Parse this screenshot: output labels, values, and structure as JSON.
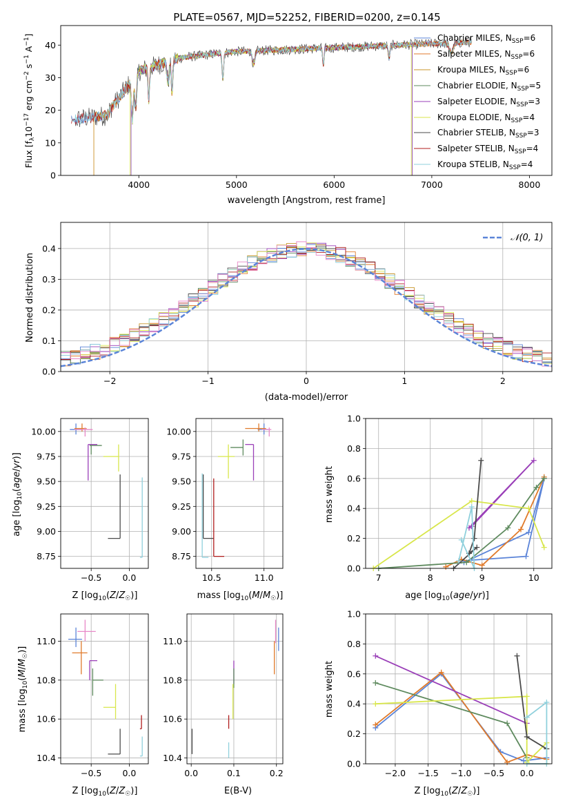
{
  "figure": {
    "title": "PLATE=0567, MJD=52252, FIBERID=0200, z=0.145"
  },
  "colors": {
    "blue": "#5b84d8",
    "orange": "#e07a2a",
    "olive": "#c8952a",
    "green": "#5e8a5e",
    "purple": "#9a3fb8",
    "yellow": "#d8e64a",
    "dark": "#4a4a4a",
    "red": "#b01c1c",
    "cyan": "#8fd0dc",
    "pink": "#e888c8",
    "gray": "#7a7a7a",
    "grid": "#b0b0b0"
  },
  "chart_data": [
    {
      "id": "spectrum",
      "type": "line",
      "xlabel": "wavelength [Angstrom, rest frame]",
      "ylabel": "Flux [f_λ 10^-17 erg cm^-2 s^-1 A^-1]",
      "ylabel_parts": {
        "a": "Flux [f",
        "b": "λ",
        "c": "10",
        "d": "−17",
        "e": " erg cm",
        "f": "−2",
        "g": " s",
        "h": "−1",
        "i": " A",
        "j": "−1",
        "k": "]"
      },
      "xlim": [
        3200,
        8230
      ],
      "ylim": [
        0,
        46
      ],
      "xticks": [
        4000,
        5000,
        6000,
        7000,
        8000
      ],
      "yticks": [
        0,
        10,
        20,
        30,
        40
      ],
      "grid": false,
      "legend_placement": "top-right",
      "data_range": [
        3310,
        7410
      ],
      "legend": [
        {
          "name_main": "Chabrier MILES, N",
          "sub": "SSP",
          "tail": "=6",
          "color": "#5b84d8",
          "x_start": 3310,
          "x_end": 7410
        },
        {
          "name_main": "Salpeter MILES, N",
          "sub": "SSP",
          "tail": "=6",
          "color": "#e07a2a",
          "x_start": 3540,
          "x_end": 7410
        },
        {
          "name_main": "Kroupa MILES, N",
          "sub": "SSP",
          "tail": "=6",
          "color": "#c8952a",
          "x_start": 3540,
          "x_end": 7400
        },
        {
          "name_main": "Chabrier ELODIE, N",
          "sub": "SSP",
          "tail": "=5",
          "color": "#5e8a5e",
          "x_start": 3920,
          "x_end": 6800
        },
        {
          "name_main": "Salpeter ELODIE, N",
          "sub": "SSP",
          "tail": "=3",
          "color": "#9a3fb8",
          "x_start": 3920,
          "x_end": 6800
        },
        {
          "name_main": "Kroupa ELODIE, N",
          "sub": "SSP",
          "tail": "=4",
          "color": "#d8e64a",
          "x_start": 3910,
          "x_end": 6790
        },
        {
          "name_main": "Chabrier STELIB, N",
          "sub": "SSP",
          "tail": "=3",
          "color": "#4a4a4a",
          "x_start": 3310,
          "x_end": 7410
        },
        {
          "name_main": "Salpeter STELIB, N",
          "sub": "SSP",
          "tail": "=4",
          "color": "#b01c1c",
          "x_start": 3310,
          "x_end": 7410
        },
        {
          "name_main": "Kroupa STELIB, N",
          "sub": "SSP",
          "tail": "=4",
          "color": "#8fd0dc",
          "x_start": 3310,
          "x_end": 7410
        }
      ]
    },
    {
      "id": "residuals",
      "type": "line",
      "xlabel": "(data-model)/error",
      "ylabel": "Normed distribution",
      "xlim": [
        -2.5,
        2.5
      ],
      "ylim": [
        0,
        0.485
      ],
      "xticks": [
        -2,
        -1,
        0,
        1,
        2
      ],
      "yticks": [
        0.0,
        0.1,
        0.2,
        0.3,
        0.4
      ],
      "grid": true,
      "legend_placement": "top-right",
      "gaussian_label": "𝒩(0, 1)",
      "gaussian_color": "#5b84d8",
      "n_bins": 50,
      "step_colors": [
        "#5b84d8",
        "#e07a2a",
        "#c8952a",
        "#5e8a5e",
        "#9a3fb8",
        "#d8e64a",
        "#4a4a4a",
        "#b01c1c",
        "#8fd0dc",
        "#e888c8"
      ]
    },
    {
      "id": "age_vs_Z",
      "type": "scatter",
      "xlabel": "Z [log10(Z/Z☉)]",
      "ylabel": "age  [log10(age/yr)]",
      "xlim": [
        -0.9,
        0.25
      ],
      "ylim": [
        8.63,
        10.13
      ],
      "xticks": [
        -0.5,
        0.0
      ],
      "yticks": [
        8.75,
        9.0,
        9.25,
        9.5,
        9.75,
        10.0
      ],
      "grid": true,
      "points": [
        {
          "color": "#5b84d8",
          "x": -0.7,
          "y": 10.02,
          "x_err": [
            0.08,
            0.08
          ],
          "y_err": [
            0.05,
            0.06
          ]
        },
        {
          "color": "#e07a2a",
          "x": -0.62,
          "y": 10.03,
          "x_err": [
            0.1,
            0.06
          ],
          "y_err": [
            0.03,
            0.05
          ]
        },
        {
          "color": "#e888c8",
          "x": -0.58,
          "y": 10.02,
          "x_err": [
            0.14,
            0.1
          ],
          "y_err": [
            0.07,
            0.02
          ]
        },
        {
          "color": "#5e8a5e",
          "x": -0.5,
          "y": 9.86,
          "x_err": [
            0.02,
            0.14
          ],
          "y_err": [
            0.09,
            0.01
          ]
        },
        {
          "color": "#9a3fb8",
          "x": -0.54,
          "y": 9.87,
          "x_err": [
            0.0,
            0.12
          ],
          "y_err": [
            0.36,
            0.0
          ]
        },
        {
          "color": "#d8e64a",
          "x": -0.14,
          "y": 9.75,
          "x_err": [
            0.2,
            0.0
          ],
          "y_err": [
            0.15,
            0.12
          ]
        },
        {
          "color": "#4a4a4a",
          "x": -0.12,
          "y": 8.93,
          "x_err": [
            0.16,
            0.0
          ],
          "y_err": [
            0.0,
            0.64
          ]
        },
        {
          "color": "#b01c1c",
          "x": 0.16,
          "y": 8.75,
          "x_err": [
            0.0,
            0.0
          ],
          "y_err": [
            0.0,
            0.0
          ]
        },
        {
          "color": "#8fd0dc",
          "x": 0.17,
          "y": 8.74,
          "x_err": [
            0.03,
            0.0
          ],
          "y_err": [
            0.0,
            0.8
          ]
        }
      ]
    },
    {
      "id": "age_vs_mass",
      "type": "scatter",
      "xlabel": "mass [log10(M/M☉)]",
      "ylabel": "",
      "xlim": [
        10.35,
        11.18
      ],
      "ylim": [
        8.63,
        10.13
      ],
      "xticks": [
        10.5,
        11.0
      ],
      "yticks": [
        8.75,
        9.0,
        9.25,
        9.5,
        9.75,
        10.0
      ],
      "grid": true,
      "points": [
        {
          "color": "#5b84d8",
          "x": 11.0,
          "y": 10.02,
          "x_err": [
            0.06,
            0.04
          ],
          "y_err": [
            0.05,
            0.06
          ]
        },
        {
          "color": "#e07a2a",
          "x": 10.95,
          "y": 10.03,
          "x_err": [
            0.13,
            0.07
          ],
          "y_err": [
            0.03,
            0.05
          ]
        },
        {
          "color": "#e888c8",
          "x": 11.05,
          "y": 10.02,
          "x_err": [
            0.07,
            0.02
          ],
          "y_err": [
            0.07,
            0.02
          ]
        },
        {
          "color": "#5e8a5e",
          "x": 10.8,
          "y": 9.84,
          "x_err": [
            0.12,
            0.0
          ],
          "y_err": [
            0.08,
            0.08
          ]
        },
        {
          "color": "#9a3fb8",
          "x": 10.9,
          "y": 9.87,
          "x_err": [
            0.08,
            0.0
          ],
          "y_err": [
            0.36,
            0.0
          ]
        },
        {
          "color": "#d8e64a",
          "x": 10.66,
          "y": 9.75,
          "x_err": [
            0.1,
            0.06
          ],
          "y_err": [
            0.22,
            0.12
          ]
        },
        {
          "color": "#4a4a4a",
          "x": 10.42,
          "y": 8.93,
          "x_err": [
            0.0,
            0.1
          ],
          "y_err": [
            0.0,
            0.64
          ]
        },
        {
          "color": "#b01c1c",
          "x": 10.52,
          "y": 8.75,
          "x_err": [
            0.0,
            0.1
          ],
          "y_err": [
            0.0,
            0.78
          ]
        },
        {
          "color": "#8fd0dc",
          "x": 10.41,
          "y": 8.74,
          "x_err": [
            0.0,
            0.06
          ],
          "y_err": [
            0.0,
            0.84
          ]
        }
      ]
    },
    {
      "id": "weight_vs_age",
      "type": "line",
      "xlabel": "age  [log10(age/yr)]",
      "ylabel": "mass weight",
      "xlim": [
        6.75,
        10.35
      ],
      "ylim": [
        0,
        1
      ],
      "xticks": [
        7,
        8,
        9,
        10
      ],
      "yticks": [
        0.0,
        0.2,
        0.4,
        0.6,
        0.8,
        1.0
      ],
      "grid": true,
      "series": [
        {
          "color": "#5b84d8",
          "x": [
            8.6,
            9.85,
            10.2,
            9.9,
            8.65
          ],
          "y": [
            0.05,
            0.08,
            0.6,
            0.24,
            0.04
          ]
        },
        {
          "color": "#e07a2a",
          "x": [
            8.3,
            8.6,
            9.0,
            9.75,
            10.2
          ],
          "y": [
            0.01,
            0.06,
            0.02,
            0.26,
            0.61
          ]
        },
        {
          "color": "#5e8a5e",
          "x": [
            7.0,
            8.7,
            9.5,
            10.05,
            10.2
          ],
          "y": [
            0.0,
            0.04,
            0.27,
            0.54,
            0.6
          ]
        },
        {
          "color": "#9a3fb8",
          "x": [
            8.75,
            10.0,
            8.8
          ],
          "y": [
            0.27,
            0.72,
            0.28
          ]
        },
        {
          "color": "#d8e64a",
          "x": [
            6.9,
            8.8,
            9.9,
            10.2
          ],
          "y": [
            0.0,
            0.45,
            0.4,
            0.14
          ]
        },
        {
          "color": "#4a4a4a",
          "x": [
            8.45,
            8.9,
            8.75,
            8.85,
            8.98
          ],
          "y": [
            0.0,
            0.14,
            0.1,
            0.2,
            0.72
          ]
        },
        {
          "color": "#8fd0dc",
          "x": [
            8.55,
            8.8,
            8.85,
            8.6
          ],
          "y": [
            0.05,
            0.41,
            0.0,
            0.19
          ]
        }
      ]
    },
    {
      "id": "mass_vs_Z",
      "type": "scatter",
      "xlabel": "Z [log10(Z/Z☉)]",
      "ylabel": "mass [log10(M/M☉)]",
      "xlim": [
        -0.9,
        0.25
      ],
      "ylim": [
        10.37,
        11.14
      ],
      "xticks": [
        -0.5,
        0.0
      ],
      "yticks": [
        10.4,
        10.6,
        10.8,
        11.0
      ],
      "grid": true,
      "points": [
        {
          "color": "#5b84d8",
          "x": -0.7,
          "y": 11.01,
          "x_err": [
            0.1,
            0.08
          ],
          "y_err": [
            0.04,
            0.06
          ]
        },
        {
          "color": "#e888c8",
          "x": -0.58,
          "y": 11.05,
          "x_err": [
            0.1,
            0.14
          ],
          "y_err": [
            0.05,
            0.06
          ]
        },
        {
          "color": "#e07a2a",
          "x": -0.63,
          "y": 10.94,
          "x_err": [
            0.12,
            0.08
          ],
          "y_err": [
            0.11,
            0.06
          ]
        },
        {
          "color": "#9a3fb8",
          "x": -0.52,
          "y": 10.9,
          "x_err": [
            0.0,
            0.1
          ],
          "y_err": [
            0.1,
            0.0
          ]
        },
        {
          "color": "#5e8a5e",
          "x": -0.48,
          "y": 10.8,
          "x_err": [
            0.0,
            0.14
          ],
          "y_err": [
            0.08,
            0.06
          ]
        },
        {
          "color": "#d8e64a",
          "x": -0.18,
          "y": 10.66,
          "x_err": [
            0.16,
            0.0
          ],
          "y_err": [
            0.06,
            0.12
          ]
        },
        {
          "color": "#4a4a4a",
          "x": -0.12,
          "y": 10.42,
          "x_err": [
            0.16,
            0.0
          ],
          "y_err": [
            0.0,
            0.13
          ]
        },
        {
          "color": "#b01c1c",
          "x": 0.16,
          "y": 10.55,
          "x_err": [
            0.02,
            0.0
          ],
          "y_err": [
            0.0,
            0.07
          ]
        },
        {
          "color": "#8fd0dc",
          "x": 0.17,
          "y": 10.41,
          "x_err": [
            0.03,
            0.0
          ],
          "y_err": [
            0.0,
            0.1
          ]
        }
      ]
    },
    {
      "id": "mass_vs_EBV",
      "type": "scatter",
      "xlabel": "E(B-V)",
      "ylabel": "",
      "xlim": [
        -0.01,
        0.215
      ],
      "ylim": [
        10.37,
        11.14
      ],
      "xticks": [
        0.0,
        0.1,
        0.2
      ],
      "yticks": [
        10.4,
        10.6,
        10.8,
        11.0
      ],
      "grid": true,
      "points": [
        {
          "color": "#5b84d8",
          "x": 0.205,
          "y": 11.01,
          "x_err": [
            0.0,
            0.0
          ],
          "y_err": [
            0.06,
            0.06
          ]
        },
        {
          "color": "#e888c8",
          "x": 0.198,
          "y": 11.05,
          "x_err": [
            0.0,
            0.0
          ],
          "y_err": [
            0.06,
            0.06
          ]
        },
        {
          "color": "#e07a2a",
          "x": 0.195,
          "y": 10.94,
          "x_err": [
            0.0,
            0.0
          ],
          "y_err": [
            0.11,
            0.06
          ]
        },
        {
          "color": "#9a3fb8",
          "x": 0.1,
          "y": 10.88,
          "x_err": [
            0.0,
            0.0
          ],
          "y_err": [
            0.1,
            0.02
          ]
        },
        {
          "color": "#5e8a5e",
          "x": 0.1,
          "y": 10.8,
          "x_err": [
            0.0,
            0.0
          ],
          "y_err": [
            0.04,
            0.06
          ]
        },
        {
          "color": "#d8e64a",
          "x": 0.098,
          "y": 10.66,
          "x_err": [
            0.0,
            0.0
          ],
          "y_err": [
            0.06,
            0.12
          ]
        },
        {
          "color": "#4a4a4a",
          "x": 0.002,
          "y": 10.42,
          "x_err": [
            0.0,
            0.0
          ],
          "y_err": [
            0.0,
            0.13
          ]
        },
        {
          "color": "#b01c1c",
          "x": 0.088,
          "y": 10.55,
          "x_err": [
            0.0,
            0.0
          ],
          "y_err": [
            0.0,
            0.07
          ]
        },
        {
          "color": "#8fd0dc",
          "x": 0.088,
          "y": 10.4,
          "x_err": [
            0.0,
            0.0
          ],
          "y_err": [
            0.0,
            0.08
          ]
        }
      ]
    },
    {
      "id": "weight_vs_Z",
      "type": "line",
      "xlabel": "Z [log10(Z/Z☉)]",
      "ylabel": "mass weight",
      "xlim": [
        -2.45,
        0.38
      ],
      "ylim": [
        0,
        1
      ],
      "xticks": [
        -2.0,
        -1.5,
        -1.0,
        -0.5,
        0.0
      ],
      "yticks": [
        0.0,
        0.2,
        0.4,
        0.6,
        0.8,
        1.0
      ],
      "grid": true,
      "series": [
        {
          "color": "#5b84d8",
          "x": [
            -2.3,
            -1.3,
            -0.4,
            -0.05,
            0.3
          ],
          "y": [
            0.24,
            0.6,
            0.08,
            0.02,
            0.04
          ]
        },
        {
          "color": "#e07a2a",
          "x": [
            -2.3,
            -1.3,
            -0.3,
            0.0,
            0.3
          ],
          "y": [
            0.26,
            0.61,
            0.01,
            0.06,
            0.03
          ]
        },
        {
          "color": "#5e8a5e",
          "x": [
            -2.3,
            -0.3,
            0.0
          ],
          "y": [
            0.54,
            0.27,
            0.04
          ]
        },
        {
          "color": "#9a3fb8",
          "x": [
            -2.3,
            0.0
          ],
          "y": [
            0.72,
            0.27
          ]
        },
        {
          "color": "#d8e64a",
          "x": [
            -2.3,
            0.0,
            0.0,
            0.3,
            0.3
          ],
          "y": [
            0.4,
            0.45,
            0.01,
            0.14,
            0.0
          ]
        },
        {
          "color": "#4a4a4a",
          "x": [
            -0.15,
            0.0,
            0.3
          ],
          "y": [
            0.72,
            0.18,
            0.1
          ]
        },
        {
          "color": "#8fd0dc",
          "x": [
            0.0,
            0.3,
            0.3,
            0.0
          ],
          "y": [
            0.31,
            0.41,
            0.0,
            0.0
          ]
        }
      ]
    }
  ]
}
